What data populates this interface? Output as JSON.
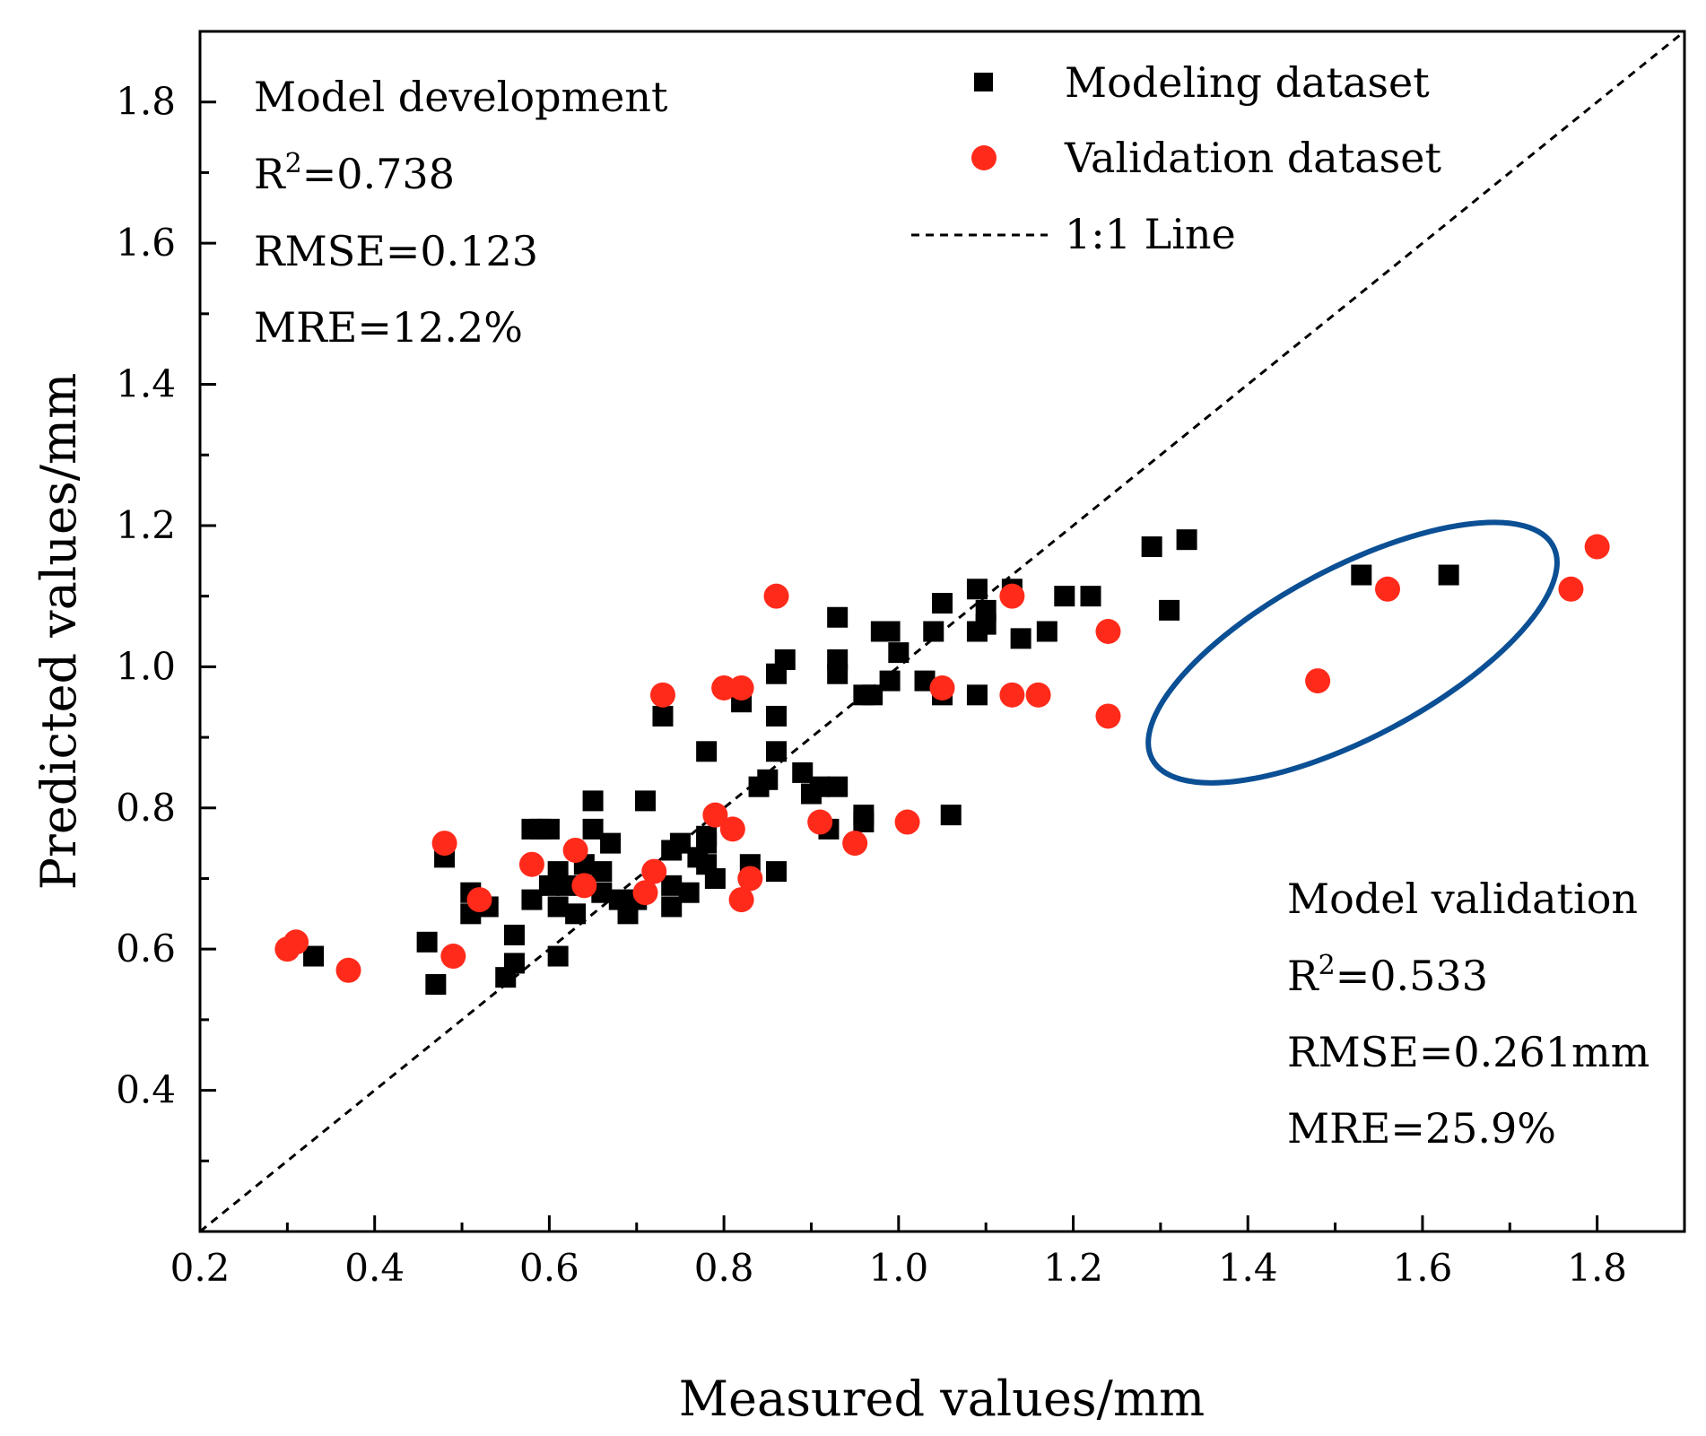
{
  "chart_data": {
    "type": "scatter",
    "xlabel": "Measured values/mm",
    "ylabel": "Predicted values/mm",
    "xlim": [
      0.2,
      1.9
    ],
    "ylim": [
      0.2,
      1.9
    ],
    "xticks": [
      "0.2",
      "0.4",
      "0.6",
      "0.8",
      "1.0",
      "1.2",
      "1.4",
      "1.6",
      "1.8"
    ],
    "yticks": [
      "0.4",
      "0.6",
      "0.8",
      "1.0",
      "1.2",
      "1.4",
      "1.6",
      "1.8"
    ],
    "grid": false,
    "legend_position": "top-right",
    "legend": [
      {
        "label": "Modeling dataset",
        "marker": "square",
        "color": "#000000"
      },
      {
        "label": "Validation dataset",
        "marker": "circle",
        "color": "#ff2a1a"
      },
      {
        "label": "1:1 Line",
        "marker": "dashed-line",
        "color": "#000000"
      }
    ],
    "annotations": {
      "development": {
        "title": "Model development",
        "r2_label": "R",
        "r2_sup": "2",
        "r2_value": "=0.738",
        "rmse": "RMSE=0.123",
        "mre": "MRE=12.2%"
      },
      "validation": {
        "title": "Model validation",
        "r2_label": "R",
        "r2_sup": "2",
        "r2_value": "=0.533",
        "rmse": "RMSE=0.261mm",
        "mre": "MRE=25.9%"
      }
    },
    "highlight_ellipse": {
      "cx": 1.52,
      "cy": 1.02,
      "rx": 0.26,
      "ry": 0.12,
      "angle_deg": 28,
      "color": "#0b4f94"
    },
    "series": [
      {
        "name": "Modeling dataset",
        "marker": "square",
        "color": "#000000",
        "points": [
          [
            0.33,
            0.59
          ],
          [
            0.46,
            0.61
          ],
          [
            0.47,
            0.55
          ],
          [
            0.48,
            0.73
          ],
          [
            0.51,
            0.65
          ],
          [
            0.51,
            0.68
          ],
          [
            0.53,
            0.66
          ],
          [
            0.55,
            0.56
          ],
          [
            0.56,
            0.58
          ],
          [
            0.56,
            0.62
          ],
          [
            0.58,
            0.67
          ],
          [
            0.58,
            0.77
          ],
          [
            0.59,
            0.77
          ],
          [
            0.6,
            0.69
          ],
          [
            0.6,
            0.77
          ],
          [
            0.61,
            0.59
          ],
          [
            0.61,
            0.66
          ],
          [
            0.61,
            0.71
          ],
          [
            0.62,
            0.69
          ],
          [
            0.63,
            0.65
          ],
          [
            0.64,
            0.72
          ],
          [
            0.65,
            0.77
          ],
          [
            0.65,
            0.81
          ],
          [
            0.66,
            0.71
          ],
          [
            0.66,
            0.68
          ],
          [
            0.67,
            0.75
          ],
          [
            0.68,
            0.67
          ],
          [
            0.69,
            0.65
          ],
          [
            0.7,
            0.67
          ],
          [
            0.71,
            0.81
          ],
          [
            0.73,
            0.93
          ],
          [
            0.74,
            0.66
          ],
          [
            0.74,
            0.69
          ],
          [
            0.74,
            0.74
          ],
          [
            0.75,
            0.75
          ],
          [
            0.76,
            0.68
          ],
          [
            0.77,
            0.73
          ],
          [
            0.78,
            0.72
          ],
          [
            0.78,
            0.75
          ],
          [
            0.78,
            0.76
          ],
          [
            0.78,
            0.88
          ],
          [
            0.79,
            0.7
          ],
          [
            0.82,
            0.95
          ],
          [
            0.83,
            0.72
          ],
          [
            0.84,
            0.83
          ],
          [
            0.85,
            0.84
          ],
          [
            0.86,
            0.71
          ],
          [
            0.86,
            0.88
          ],
          [
            0.86,
            0.93
          ],
          [
            0.86,
            0.99
          ],
          [
            0.87,
            1.01
          ],
          [
            0.89,
            0.85
          ],
          [
            0.9,
            0.82
          ],
          [
            0.91,
            0.83
          ],
          [
            0.92,
            0.77
          ],
          [
            0.93,
            0.83
          ],
          [
            0.93,
            0.99
          ],
          [
            0.93,
            1.01
          ],
          [
            0.93,
            1.07
          ],
          [
            0.96,
            0.78
          ],
          [
            0.96,
            0.79
          ],
          [
            0.96,
            0.96
          ],
          [
            0.97,
            0.96
          ],
          [
            0.98,
            1.05
          ],
          [
            0.99,
            0.98
          ],
          [
            0.99,
            1.05
          ],
          [
            1.0,
            1.02
          ],
          [
            1.03,
            0.98
          ],
          [
            1.04,
            1.05
          ],
          [
            1.05,
            0.96
          ],
          [
            1.05,
            1.09
          ],
          [
            1.06,
            0.79
          ],
          [
            1.09,
            0.96
          ],
          [
            1.09,
            1.05
          ],
          [
            1.09,
            1.11
          ],
          [
            1.1,
            1.06
          ],
          [
            1.1,
            1.08
          ],
          [
            1.13,
            1.11
          ],
          [
            1.14,
            1.04
          ],
          [
            1.17,
            1.05
          ],
          [
            1.19,
            1.1
          ],
          [
            1.22,
            1.1
          ],
          [
            1.29,
            1.17
          ],
          [
            1.31,
            1.08
          ],
          [
            1.33,
            1.18
          ],
          [
            1.53,
            1.13
          ],
          [
            1.63,
            1.13
          ]
        ]
      },
      {
        "name": "Validation dataset",
        "marker": "circle",
        "color": "#ff2a1a",
        "points": [
          [
            0.3,
            0.6
          ],
          [
            0.31,
            0.61
          ],
          [
            0.37,
            0.57
          ],
          [
            0.48,
            0.75
          ],
          [
            0.49,
            0.59
          ],
          [
            0.52,
            0.67
          ],
          [
            0.58,
            0.72
          ],
          [
            0.63,
            0.74
          ],
          [
            0.64,
            0.69
          ],
          [
            0.71,
            0.68
          ],
          [
            0.72,
            0.71
          ],
          [
            0.73,
            0.96
          ],
          [
            0.79,
            0.79
          ],
          [
            0.8,
            0.97
          ],
          [
            0.81,
            0.77
          ],
          [
            0.82,
            0.67
          ],
          [
            0.82,
            0.97
          ],
          [
            0.83,
            0.7
          ],
          [
            0.86,
            1.1
          ],
          [
            0.91,
            0.78
          ],
          [
            0.95,
            0.75
          ],
          [
            1.01,
            0.78
          ],
          [
            1.05,
            0.97
          ],
          [
            1.13,
            0.96
          ],
          [
            1.13,
            1.1
          ],
          [
            1.16,
            0.96
          ],
          [
            1.24,
            0.93
          ],
          [
            1.24,
            1.05
          ],
          [
            1.48,
            0.98
          ],
          [
            1.56,
            1.11
          ],
          [
            1.77,
            1.11
          ],
          [
            1.8,
            1.17
          ]
        ]
      }
    ]
  }
}
